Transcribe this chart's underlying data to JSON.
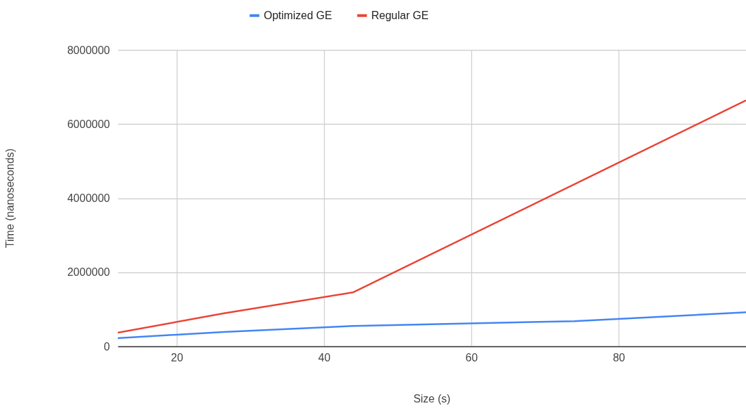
{
  "chart_data": {
    "type": "line",
    "xlabel": "Size (s)",
    "ylabel": "Time (nanoseconds)",
    "xlim": [
      12,
      97.3
    ],
    "xticks": [
      20,
      40,
      60,
      80
    ],
    "ylim": [
      0,
      8000000
    ],
    "yticks": [
      0,
      2000000,
      4000000,
      6000000,
      8000000
    ],
    "grid": true,
    "legend": "top",
    "line_style": "solid",
    "marker": "none",
    "series": [
      {
        "name": "Optimized GE",
        "color": "#4285f4",
        "x": [
          12,
          26.4,
          44,
          74,
          97.3
        ],
        "values": [
          220000,
          390000,
          550000,
          680000,
          920000
        ]
      },
      {
        "name": "Regular GE",
        "color": "#ea4335",
        "x": [
          12,
          26.4,
          44,
          97.3
        ],
        "values": [
          370000,
          890000,
          1460000,
          6640000
        ]
      }
    ]
  }
}
